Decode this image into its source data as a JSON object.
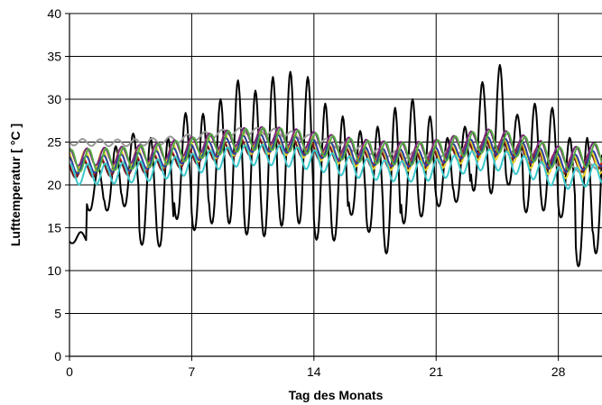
{
  "chart_data": {
    "type": "line",
    "title": "",
    "xlabel": "Tag des Monats",
    "ylabel": "Lufttemperatur [ °C ]",
    "xlim": [
      0,
      30.5
    ],
    "ylim": [
      0,
      40
    ],
    "xticks": [
      0,
      7,
      14,
      21,
      28
    ],
    "yticks": [
      0,
      5,
      10,
      15,
      20,
      25,
      30,
      35,
      40
    ],
    "grid": true,
    "legend": "none",
    "series": [
      {
        "color": "#000000",
        "width": 2,
        "dailyMin": [
          13.2,
          17,
          17,
          17.5,
          13,
          12.8,
          16,
          14.7,
          15.5,
          15.5,
          14.2,
          14,
          15.2,
          15.5,
          13.6,
          13.5,
          16.5,
          14.5,
          12,
          15.5,
          16.3,
          17.5,
          18,
          19.3,
          19,
          20,
          16.8,
          17,
          16.2,
          10.5,
          12
        ],
        "dailyMax": [
          14.5,
          22,
          24.5,
          26,
          25.5,
          25.5,
          28.4,
          28.3,
          30,
          32.2,
          31,
          32.6,
          33.2,
          32.6,
          29.5,
          28,
          26.3,
          26.8,
          29,
          30,
          28,
          25.5,
          26.8,
          32,
          34,
          28.2,
          29.5,
          29,
          25.5,
          25.5,
          27.2
        ]
      },
      {
        "color": "#999999",
        "width": 2,
        "start": 25,
        "end": 22.4,
        "amp": 0.4,
        "offset": 0.05
      },
      {
        "color": "#cc2222",
        "width": 2,
        "start": 22,
        "end": 23.2,
        "amp": 1.0,
        "offset": 0.1
      },
      {
        "color": "#6b1a1a",
        "width": 2,
        "start": 21.7,
        "end": 23,
        "amp": 0.9,
        "offset": 0.15
      },
      {
        "color": "#e6d32a",
        "width": 2,
        "start": 22.7,
        "end": 22.8,
        "amp": 1.3,
        "offset": 0.2
      },
      {
        "color": "#2a3fa0",
        "width": 2,
        "start": 22.3,
        "end": 23.3,
        "amp": 1.0,
        "offset": 0.25
      },
      {
        "color": "#7a2a7a",
        "width": 2,
        "start": 23.2,
        "end": 24.2,
        "amp": 1.0,
        "offset": 0.3
      },
      {
        "color": "#3cc8cc",
        "width": 2,
        "start": 21.2,
        "end": 21.5,
        "amp": 1.2,
        "offset": 0.35
      },
      {
        "color": "#55aa44",
        "width": 2,
        "start": 22.8,
        "end": 23.8,
        "amp": 1.3,
        "offset": 0.4
      }
    ]
  }
}
